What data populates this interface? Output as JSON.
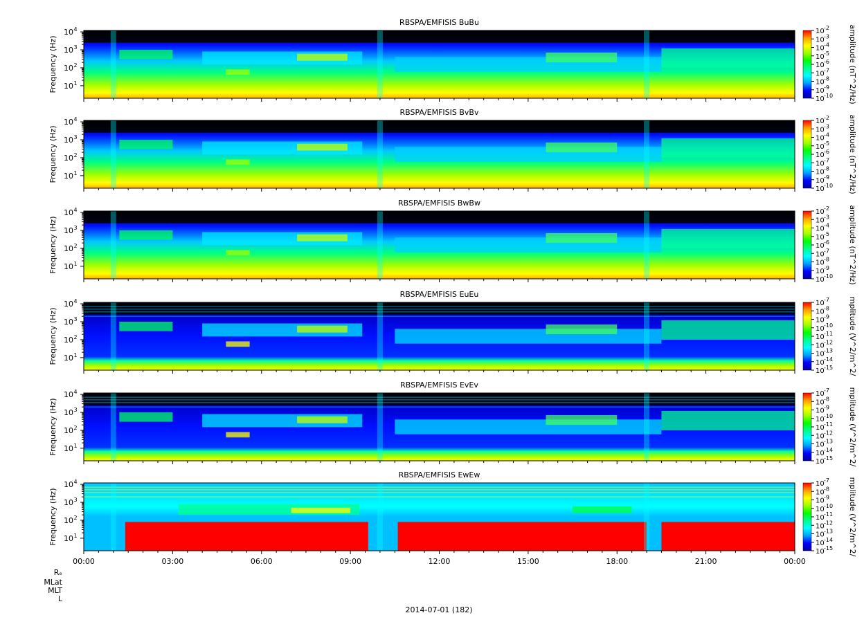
{
  "chart_data": {
    "type": "heatmap",
    "date_label": "2014-07-01 (182)",
    "row_labels": [
      "Rₑ",
      "MLat",
      "MLT",
      "L"
    ],
    "x_tick_labels": [
      "00:00",
      "03:00",
      "06:00",
      "09:00",
      "12:00",
      "15:00",
      "18:00",
      "21:00",
      "00:00"
    ],
    "x_tick_hours": [
      0,
      3,
      6,
      9,
      12,
      15,
      18,
      21,
      24
    ],
    "xlim_hours": [
      0,
      24
    ],
    "ylabel": "Frequency (Hz)",
    "y_scale": "log",
    "ylim_hz": [
      2,
      12000
    ],
    "y_tick_labels": [
      {
        "base": "10",
        "exp": "1",
        "value": 10
      },
      {
        "base": "10",
        "exp": "2",
        "value": 100
      },
      {
        "base": "10",
        "exp": "3",
        "value": 1000
      },
      {
        "base": "10",
        "exp": "4",
        "value": 10000
      }
    ],
    "colormap": [
      "#0000a0",
      "#0000ff",
      "#00a0ff",
      "#00ffff",
      "#00ff90",
      "#00ff00",
      "#a0ff00",
      "#ffff00",
      "#ffa000",
      "#ff0000"
    ],
    "panels": [
      {
        "title": "RBSPA/EMFISIS  BuBu",
        "colorbar_label": "amplitude (nT^2/Hz)",
        "colorbar_exponents": [
          "-2",
          "-3",
          "-4",
          "-5",
          "-6",
          "-7",
          "-8",
          "-9",
          "-10"
        ],
        "ylim_log": [
          -10,
          -2
        ],
        "features": {
          "bg_red_band": false,
          "black_top": true,
          "horizontal_lines": false
        }
      },
      {
        "title": "RBSPA/EMFISIS  BvBv",
        "colorbar_label": "amplitude (nT^2/Hz)",
        "colorbar_exponents": [
          "-2",
          "-3",
          "-4",
          "-5",
          "-6",
          "-7",
          "-8",
          "-9",
          "-10"
        ],
        "ylim_log": [
          -10,
          -2
        ],
        "features": {
          "bg_red_band": false,
          "black_top": true,
          "horizontal_lines": false
        }
      },
      {
        "title": "RBSPA/EMFISIS  BwBw",
        "colorbar_label": "amplitude (nT^2/Hz)",
        "colorbar_exponents": [
          "-2",
          "-3",
          "-4",
          "-5",
          "-6",
          "-7",
          "-8",
          "-9",
          "-10"
        ],
        "ylim_log": [
          -10,
          -2
        ],
        "features": {
          "bg_red_band": false,
          "black_top": true,
          "horizontal_lines": false
        }
      },
      {
        "title": "RBSPA/EMFISIS  EuEu",
        "colorbar_label": "mplitude (V^2/m^2/",
        "colorbar_exponents": [
          "-7",
          "-8",
          "-9",
          "-10",
          "-11",
          "-12",
          "-13",
          "-14",
          "-15"
        ],
        "ylim_log": [
          -15,
          -7
        ],
        "features": {
          "bg_red_band": false,
          "black_top": true,
          "horizontal_lines": true
        }
      },
      {
        "title": "RBSPA/EMFISIS  EvEv",
        "colorbar_label": "mplitude (V^2/m^2/",
        "colorbar_exponents": [
          "-7",
          "-8",
          "-9",
          "-10",
          "-11",
          "-12",
          "-13",
          "-14",
          "-15"
        ],
        "ylim_log": [
          -15,
          -7
        ],
        "features": {
          "bg_red_band": false,
          "black_top": true,
          "horizontal_lines": true
        }
      },
      {
        "title": "RBSPA/EMFISIS  EwEw",
        "colorbar_label": "mplitude (V^2/m^2/",
        "colorbar_exponents": [
          "-7",
          "-8",
          "-9",
          "-10",
          "-11",
          "-12",
          "-13",
          "-14",
          "-15"
        ],
        "ylim_log": [
          -15,
          -7
        ],
        "features": {
          "bg_red_band": true,
          "black_top": false,
          "horizontal_lines": true
        }
      }
    ]
  }
}
